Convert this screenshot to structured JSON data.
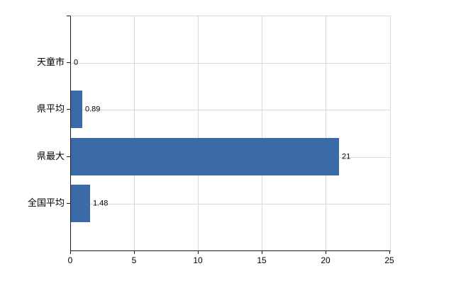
{
  "chart_data": {
    "type": "bar",
    "orientation": "horizontal",
    "title": "",
    "xlabel": "",
    "ylabel": "",
    "categories": [
      "天童市",
      "県平均",
      "県最大",
      "全国平均"
    ],
    "values": [
      0,
      0.89,
      21,
      1.48
    ],
    "value_labels": [
      "0",
      "0.89",
      "21",
      "1.48"
    ],
    "xlim": [
      0,
      25
    ],
    "x_ticks": [
      0,
      5,
      10,
      15,
      20,
      25
    ],
    "x_tick_labels": [
      "0",
      "5",
      "10",
      "15",
      "20",
      "25"
    ],
    "grid": true,
    "legend": false,
    "colors": {
      "bar": "#3a6ba8",
      "grid": "#d9d9d9",
      "axis": "#1a1a1a",
      "text": "#000000",
      "background": "#ffffff"
    }
  }
}
